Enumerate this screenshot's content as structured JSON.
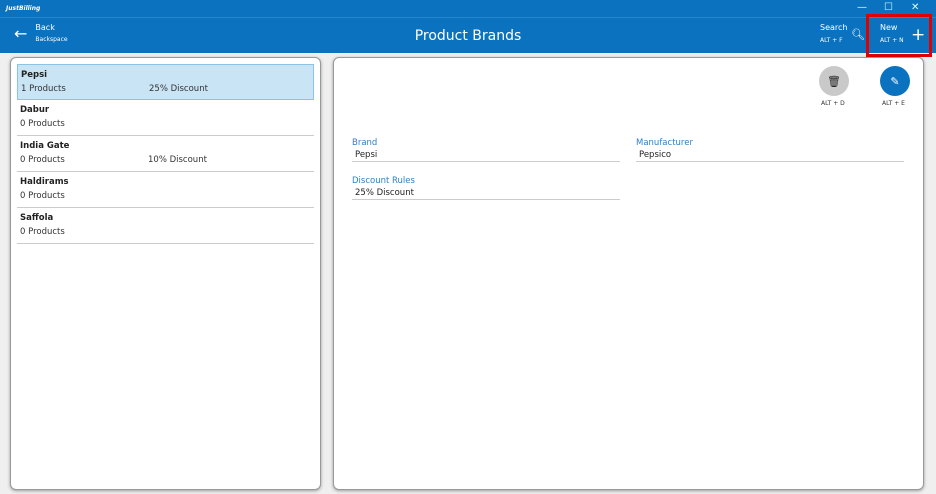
{
  "app": {
    "logo": "JustBilling",
    "title": "Product Brands"
  },
  "window": {
    "minimize": "—",
    "maximize": "☐",
    "close": "✕"
  },
  "header": {
    "back_label": "Back",
    "back_shortcut": "Backspace",
    "search_label": "Search",
    "search_shortcut": "ALT + F",
    "new_label": "New",
    "new_shortcut": "ALT + N"
  },
  "brands": [
    {
      "name": "Pepsi",
      "products": "1 Products",
      "discount": "25% Discount",
      "selected": true
    },
    {
      "name": "Dabur",
      "products": "0 Products",
      "discount": ""
    },
    {
      "name": "India Gate",
      "products": "0 Products",
      "discount": "10% Discount"
    },
    {
      "name": "Haldirams",
      "products": "0 Products",
      "discount": ""
    },
    {
      "name": "Saffola",
      "products": "0 Products",
      "discount": ""
    }
  ],
  "detail": {
    "delete_shortcut": "ALT + D",
    "edit_shortcut": "ALT + E",
    "brand_label": "Brand",
    "brand_value": "Pepsi",
    "manufacturer_label": "Manufacturer",
    "manufacturer_value": "Pepsico",
    "discount_label": "Discount Rules",
    "discount_value": "25% Discount"
  },
  "colors": {
    "accent": "#0a72bf",
    "selected": "#c9e4f5",
    "highlight": "#e10000"
  }
}
